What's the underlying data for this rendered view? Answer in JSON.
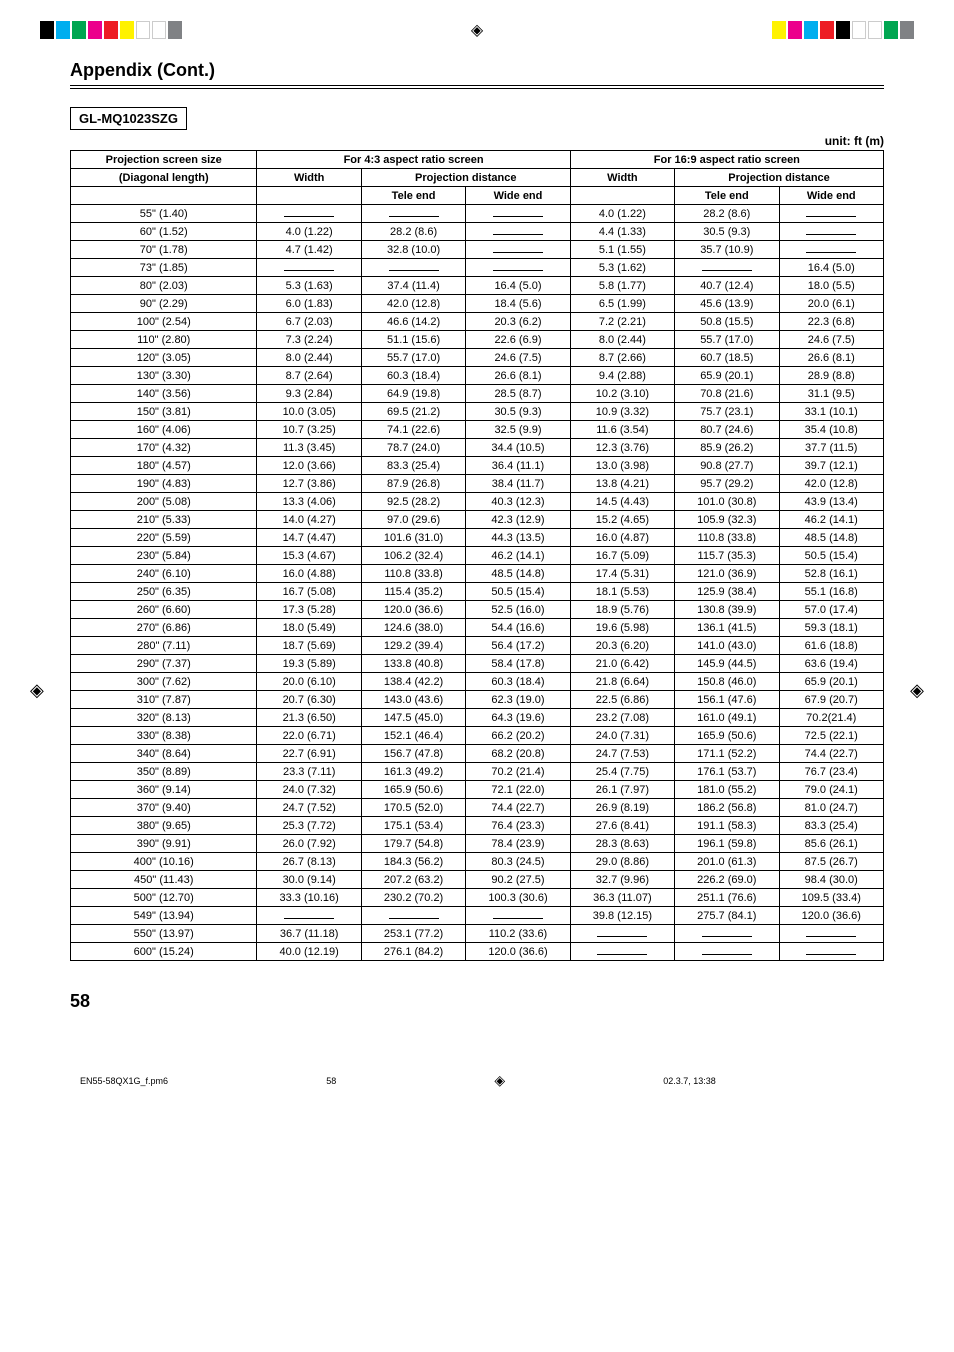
{
  "registration": {
    "left_colors": [
      "#000000",
      "#00aeef",
      "#00a651",
      "#ec008c",
      "#ed1c24",
      "#fff200",
      "#ffffff",
      "#ffffff",
      "#808285"
    ],
    "right_colors": [
      "#fff200",
      "#ec008c",
      "#00aeef",
      "#ed1c24",
      "#000000",
      "#ffffff",
      "#ffffff",
      "#00a651",
      "#808285"
    ]
  },
  "section_title": "Appendix (Cont.)",
  "model": "GL-MQ1023SZG",
  "unit_label": "unit: ft (m)",
  "headers": {
    "screen_size": "Projection screen size",
    "diagonal": "(Diagonal length)",
    "ratio43": "For 4:3 aspect ratio screen",
    "ratio169": "For 16:9 aspect ratio screen",
    "width": "Width",
    "proj_dist": "Projection distance",
    "tele": "Tele end",
    "wide": "Wide end"
  },
  "rows": [
    {
      "d": "55\" (1.40)",
      "w43": null,
      "t43": null,
      "e43": null,
      "w169": "4.0 (1.22)",
      "t169": "28.2 (8.6)",
      "e169": null
    },
    {
      "d": "60\" (1.52)",
      "w43": "4.0 (1.22)",
      "t43": "28.2 (8.6)",
      "e43": null,
      "w169": "4.4 (1.33)",
      "t169": "30.5 (9.3)",
      "e169": null
    },
    {
      "d": "70\" (1.78)",
      "w43": "4.7 (1.42)",
      "t43": "32.8 (10.0)",
      "e43": null,
      "w169": "5.1 (1.55)",
      "t169": "35.7 (10.9)",
      "e169": null
    },
    {
      "d": "73\" (1.85)",
      "w43": null,
      "t43": null,
      "e43": null,
      "w169": "5.3 (1.62)",
      "t169": null,
      "e169": "16.4 (5.0)"
    },
    {
      "d": "80\" (2.03)",
      "w43": "5.3 (1.63)",
      "t43": "37.4 (11.4)",
      "e43": "16.4 (5.0)",
      "w169": "5.8 (1.77)",
      "t169": "40.7 (12.4)",
      "e169": "18.0 (5.5)"
    },
    {
      "d": "90\" (2.29)",
      "w43": "6.0 (1.83)",
      "t43": "42.0 (12.8)",
      "e43": "18.4 (5.6)",
      "w169": "6.5 (1.99)",
      "t169": "45.6 (13.9)",
      "e169": "20.0 (6.1)"
    },
    {
      "d": "100\" (2.54)",
      "w43": "6.7 (2.03)",
      "t43": "46.6 (14.2)",
      "e43": "20.3 (6.2)",
      "w169": "7.2 (2.21)",
      "t169": "50.8 (15.5)",
      "e169": "22.3 (6.8)"
    },
    {
      "d": "110\" (2.80)",
      "w43": "7.3 (2.24)",
      "t43": "51.1 (15.6)",
      "e43": "22.6 (6.9)",
      "w169": "8.0 (2.44)",
      "t169": "55.7 (17.0)",
      "e169": "24.6 (7.5)"
    },
    {
      "d": "120\" (3.05)",
      "w43": "8.0 (2.44)",
      "t43": "55.7 (17.0)",
      "e43": "24.6 (7.5)",
      "w169": "8.7 (2.66)",
      "t169": "60.7 (18.5)",
      "e169": "26.6 (8.1)"
    },
    {
      "d": "130\" (3.30)",
      "w43": "8.7 (2.64)",
      "t43": "60.3 (18.4)",
      "e43": "26.6 (8.1)",
      "w169": "9.4 (2.88)",
      "t169": "65.9 (20.1)",
      "e169": "28.9 (8.8)"
    },
    {
      "d": "140\" (3.56)",
      "w43": "9.3 (2.84)",
      "t43": "64.9 (19.8)",
      "e43": "28.5 (8.7)",
      "w169": "10.2 (3.10)",
      "t169": "70.8 (21.6)",
      "e169": "31.1 (9.5)"
    },
    {
      "d": "150\" (3.81)",
      "w43": "10.0 (3.05)",
      "t43": "69.5 (21.2)",
      "e43": "30.5 (9.3)",
      "w169": "10.9 (3.32)",
      "t169": "75.7 (23.1)",
      "e169": "33.1 (10.1)"
    },
    {
      "d": "160\" (4.06)",
      "w43": "10.7 (3.25)",
      "t43": "74.1 (22.6)",
      "e43": "32.5 (9.9)",
      "w169": "11.6 (3.54)",
      "t169": "80.7 (24.6)",
      "e169": "35.4 (10.8)"
    },
    {
      "d": "170\" (4.32)",
      "w43": "11.3 (3.45)",
      "t43": "78.7 (24.0)",
      "e43": "34.4 (10.5)",
      "w169": "12.3 (3.76)",
      "t169": "85.9 (26.2)",
      "e169": "37.7 (11.5)"
    },
    {
      "d": "180\" (4.57)",
      "w43": "12.0 (3.66)",
      "t43": "83.3 (25.4)",
      "e43": "36.4 (11.1)",
      "w169": "13.0 (3.98)",
      "t169": "90.8 (27.7)",
      "e169": "39.7 (12.1)"
    },
    {
      "d": "190\" (4.83)",
      "w43": "12.7 (3.86)",
      "t43": "87.9 (26.8)",
      "e43": "38.4 (11.7)",
      "w169": "13.8 (4.21)",
      "t169": "95.7 (29.2)",
      "e169": "42.0 (12.8)"
    },
    {
      "d": "200\" (5.08)",
      "w43": "13.3 (4.06)",
      "t43": "92.5 (28.2)",
      "e43": "40.3 (12.3)",
      "w169": "14.5 (4.43)",
      "t169": "101.0 (30.8)",
      "e169": "43.9 (13.4)"
    },
    {
      "d": "210\" (5.33)",
      "w43": "14.0 (4.27)",
      "t43": "97.0 (29.6)",
      "e43": "42.3 (12.9)",
      "w169": "15.2 (4.65)",
      "t169": "105.9 (32.3)",
      "e169": "46.2 (14.1)"
    },
    {
      "d": "220\" (5.59)",
      "w43": "14.7 (4.47)",
      "t43": "101.6 (31.0)",
      "e43": "44.3 (13.5)",
      "w169": "16.0 (4.87)",
      "t169": "110.8 (33.8)",
      "e169": "48.5 (14.8)"
    },
    {
      "d": "230\" (5.84)",
      "w43": "15.3 (4.67)",
      "t43": "106.2 (32.4)",
      "e43": "46.2 (14.1)",
      "w169": "16.7 (5.09)",
      "t169": "115.7 (35.3)",
      "e169": "50.5 (15.4)"
    },
    {
      "d": "240\" (6.10)",
      "w43": "16.0 (4.88)",
      "t43": "110.8 (33.8)",
      "e43": "48.5 (14.8)",
      "w169": "17.4 (5.31)",
      "t169": "121.0 (36.9)",
      "e169": "52.8 (16.1)"
    },
    {
      "d": "250\" (6.35)",
      "w43": "16.7 (5.08)",
      "t43": "115.4 (35.2)",
      "e43": "50.5 (15.4)",
      "w169": "18.1 (5.53)",
      "t169": "125.9 (38.4)",
      "e169": "55.1 (16.8)"
    },
    {
      "d": "260\" (6.60)",
      "w43": "17.3 (5.28)",
      "t43": "120.0 (36.6)",
      "e43": "52.5 (16.0)",
      "w169": "18.9 (5.76)",
      "t169": "130.8 (39.9)",
      "e169": "57.0 (17.4)"
    },
    {
      "d": "270\" (6.86)",
      "w43": "18.0 (5.49)",
      "t43": "124.6 (38.0)",
      "e43": "54.4 (16.6)",
      "w169": "19.6 (5.98)",
      "t169": "136.1 (41.5)",
      "e169": "59.3 (18.1)"
    },
    {
      "d": "280\" (7.11)",
      "w43": "18.7 (5.69)",
      "t43": "129.2 (39.4)",
      "e43": "56.4 (17.2)",
      "w169": "20.3 (6.20)",
      "t169": "141.0 (43.0)",
      "e169": "61.6 (18.8)"
    },
    {
      "d": "290\" (7.37)",
      "w43": "19.3 (5.89)",
      "t43": "133.8 (40.8)",
      "e43": "58.4 (17.8)",
      "w169": "21.0 (6.42)",
      "t169": "145.9 (44.5)",
      "e169": "63.6 (19.4)"
    },
    {
      "d": "300\" (7.62)",
      "w43": "20.0 (6.10)",
      "t43": "138.4 (42.2)",
      "e43": "60.3 (18.4)",
      "w169": "21.8 (6.64)",
      "t169": "150.8 (46.0)",
      "e169": "65.9 (20.1)"
    },
    {
      "d": "310\" (7.87)",
      "w43": "20.7 (6.30)",
      "t43": "143.0 (43.6)",
      "e43": "62.3 (19.0)",
      "w169": "22.5 (6.86)",
      "t169": "156.1 (47.6)",
      "e169": "67.9 (20.7)"
    },
    {
      "d": "320\" (8.13)",
      "w43": "21.3 (6.50)",
      "t43": "147.5 (45.0)",
      "e43": "64.3 (19.6)",
      "w169": "23.2 (7.08)",
      "t169": "161.0 (49.1)",
      "e169": "70.2(21.4)"
    },
    {
      "d": "330\" (8.38)",
      "w43": "22.0 (6.71)",
      "t43": "152.1 (46.4)",
      "e43": "66.2 (20.2)",
      "w169": "24.0 (7.31)",
      "t169": "165.9 (50.6)",
      "e169": "72.5 (22.1)"
    },
    {
      "d": "340\" (8.64)",
      "w43": "22.7 (6.91)",
      "t43": "156.7 (47.8)",
      "e43": "68.2 (20.8)",
      "w169": "24.7 (7.53)",
      "t169": "171.1 (52.2)",
      "e169": "74.4 (22.7)"
    },
    {
      "d": "350\" (8.89)",
      "w43": "23.3 (7.11)",
      "t43": "161.3 (49.2)",
      "e43": "70.2 (21.4)",
      "w169": "25.4 (7.75)",
      "t169": "176.1 (53.7)",
      "e169": "76.7 (23.4)"
    },
    {
      "d": "360\" (9.14)",
      "w43": "24.0 (7.32)",
      "t43": "165.9 (50.6)",
      "e43": "72.1 (22.0)",
      "w169": "26.1 (7.97)",
      "t169": "181.0 (55.2)",
      "e169": "79.0 (24.1)"
    },
    {
      "d": "370\" (9.40)",
      "w43": "24.7 (7.52)",
      "t43": "170.5 (52.0)",
      "e43": "74.4 (22.7)",
      "w169": "26.9 (8.19)",
      "t169": "186.2 (56.8)",
      "e169": "81.0 (24.7)"
    },
    {
      "d": "380\" (9.65)",
      "w43": "25.3 (7.72)",
      "t43": "175.1 (53.4)",
      "e43": "76.4 (23.3)",
      "w169": "27.6 (8.41)",
      "t169": "191.1 (58.3)",
      "e169": "83.3 (25.4)"
    },
    {
      "d": "390\" (9.91)",
      "w43": "26.0 (7.92)",
      "t43": "179.7 (54.8)",
      "e43": "78.4 (23.9)",
      "w169": "28.3 (8.63)",
      "t169": "196.1 (59.8)",
      "e169": "85.6 (26.1)"
    },
    {
      "d": "400\" (10.16)",
      "w43": "26.7 (8.13)",
      "t43": "184.3 (56.2)",
      "e43": "80.3 (24.5)",
      "w169": "29.0 (8.86)",
      "t169": "201.0 (61.3)",
      "e169": "87.5 (26.7)"
    },
    {
      "d": "450\" (11.43)",
      "w43": "30.0 (9.14)",
      "t43": "207.2 (63.2)",
      "e43": "90.2 (27.5)",
      "w169": "32.7 (9.96)",
      "t169": "226.2 (69.0)",
      "e169": "98.4 (30.0)"
    },
    {
      "d": "500\" (12.70)",
      "w43": "33.3 (10.16)",
      "t43": "230.2 (70.2)",
      "e43": "100.3 (30.6)",
      "w169": "36.3 (11.07)",
      "t169": "251.1 (76.6)",
      "e169": "109.5 (33.4)"
    },
    {
      "d": "549\" (13.94)",
      "w43": null,
      "t43": null,
      "e43": null,
      "w169": "39.8 (12.15)",
      "t169": "275.7 (84.1)",
      "e169": "120.0 (36.6)"
    },
    {
      "d": "550\" (13.97)",
      "w43": "36.7 (11.18)",
      "t43": "253.1 (77.2)",
      "e43": "110.2 (33.6)",
      "w169": null,
      "t169": null,
      "e169": null
    },
    {
      "d": "600\" (15.24)",
      "w43": "40.0 (12.19)",
      "t43": "276.1 (84.2)",
      "e43": "120.0 (36.6)",
      "w169": null,
      "t169": null,
      "e169": null
    }
  ],
  "page_number": "58",
  "footer": {
    "filename": "EN55-58QX1G_f.pm6",
    "page": "58",
    "timestamp": "02.3.7, 13:38"
  }
}
